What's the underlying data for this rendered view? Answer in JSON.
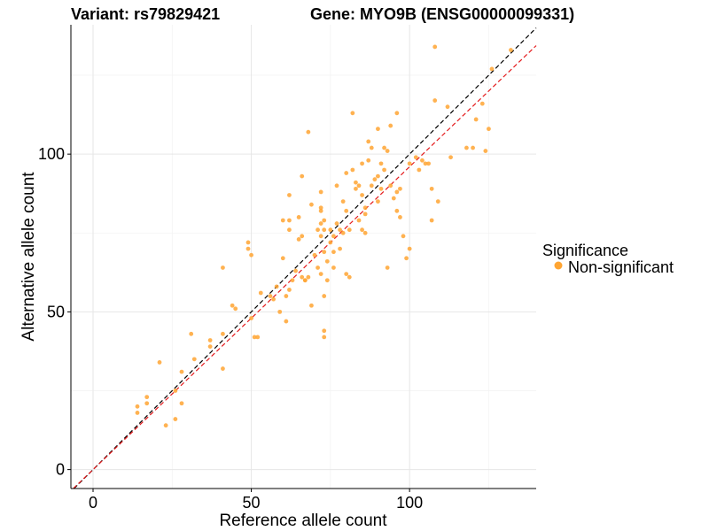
{
  "chart_data": {
    "type": "scatter",
    "title_left": "Variant: rs79829421",
    "title_right": "Gene: MYO9B (ENSG00000099331)",
    "xlabel": "Reference allele count",
    "ylabel": "Alternative allele count",
    "xlim": [
      -7,
      140
    ],
    "ylim": [
      -6,
      141
    ],
    "xticks": [
      0,
      50,
      100
    ],
    "yticks": [
      0,
      50,
      100
    ],
    "grid": true,
    "legend": {
      "title": "Significance",
      "placement": "right",
      "entries": [
        {
          "label": "Non-significant",
          "color": "#FFA533"
        }
      ]
    },
    "colors": {
      "points": "#FFA533",
      "identity_line": "#000000",
      "fit_line": "#E41A1C"
    },
    "reference_lines": [
      {
        "name": "identity",
        "slope": 1.0,
        "intercept": 0,
        "style": "dashed",
        "color": "#000000"
      },
      {
        "name": "fit",
        "slope": 0.96,
        "intercept": 0,
        "style": "dashed",
        "color": "#E41A1C"
      }
    ],
    "series": [
      {
        "points": [
          [
            14,
            20
          ],
          [
            14,
            18
          ],
          [
            17,
            23
          ],
          [
            17,
            21
          ],
          [
            21,
            34
          ],
          [
            23,
            14
          ],
          [
            26,
            16
          ],
          [
            26,
            25
          ],
          [
            28,
            31
          ],
          [
            28,
            21
          ],
          [
            31,
            43
          ],
          [
            32,
            35
          ],
          [
            37,
            41
          ],
          [
            37,
            39
          ],
          [
            41,
            32
          ],
          [
            41,
            43
          ],
          [
            41,
            64
          ],
          [
            44,
            52
          ],
          [
            45,
            51
          ],
          [
            49,
            72
          ],
          [
            49,
            70
          ],
          [
            50,
            68
          ],
          [
            50,
            48
          ],
          [
            51,
            42
          ],
          [
            52,
            42
          ],
          [
            53,
            56
          ],
          [
            56,
            55
          ],
          [
            57,
            54
          ],
          [
            58,
            58
          ],
          [
            59,
            50
          ],
          [
            60,
            79
          ],
          [
            60,
            67
          ],
          [
            61,
            47
          ],
          [
            61,
            55
          ],
          [
            62,
            57
          ],
          [
            62,
            87
          ],
          [
            62,
            76
          ],
          [
            62,
            79
          ],
          [
            63,
            60
          ],
          [
            64,
            63
          ],
          [
            65,
            73
          ],
          [
            65,
            80
          ],
          [
            66,
            93
          ],
          [
            66,
            74
          ],
          [
            66,
            61
          ],
          [
            67,
            60
          ],
          [
            67,
            60
          ],
          [
            68,
            107
          ],
          [
            68,
            61
          ],
          [
            69,
            52
          ],
          [
            69,
            84
          ],
          [
            70,
            68
          ],
          [
            71,
            64
          ],
          [
            71,
            76
          ],
          [
            72,
            83
          ],
          [
            72,
            78
          ],
          [
            72,
            74
          ],
          [
            72,
            62
          ],
          [
            72,
            88
          ],
          [
            72,
            82
          ],
          [
            73,
            79
          ],
          [
            73,
            69
          ],
          [
            73,
            76
          ],
          [
            73,
            55
          ],
          [
            73,
            44
          ],
          [
            73,
            42
          ],
          [
            74,
            66
          ],
          [
            74,
            60
          ],
          [
            75,
            76
          ],
          [
            75,
            72
          ],
          [
            76,
            69
          ],
          [
            76,
            64
          ],
          [
            76,
            74
          ],
          [
            77,
            90
          ],
          [
            77,
            78
          ],
          [
            78,
            76
          ],
          [
            78,
            70
          ],
          [
            79,
            85
          ],
          [
            79,
            75
          ],
          [
            80,
            82
          ],
          [
            80,
            62
          ],
          [
            80,
            94
          ],
          [
            81,
            61
          ],
          [
            81,
            76
          ],
          [
            82,
            113
          ],
          [
            82,
            95
          ],
          [
            83,
            91
          ],
          [
            83,
            89
          ],
          [
            84,
            90
          ],
          [
            84,
            79
          ],
          [
            85,
            97
          ],
          [
            85,
            87
          ],
          [
            85,
            76
          ],
          [
            86,
            75
          ],
          [
            86,
            81
          ],
          [
            86,
            83
          ],
          [
            87,
            104
          ],
          [
            87,
            98
          ],
          [
            88,
            102
          ],
          [
            88,
            90
          ],
          [
            89,
            92
          ],
          [
            90,
            108
          ],
          [
            90,
            93
          ],
          [
            90,
            85
          ],
          [
            91,
            97
          ],
          [
            91,
            89
          ],
          [
            92,
            102
          ],
          [
            92,
            95
          ],
          [
            93,
            101
          ],
          [
            93,
            64
          ],
          [
            94,
            109
          ],
          [
            94,
            90
          ],
          [
            95,
            86
          ],
          [
            96,
            113
          ],
          [
            96,
            88
          ],
          [
            96,
            82
          ],
          [
            97,
            89
          ],
          [
            97,
            80
          ],
          [
            98,
            74
          ],
          [
            99,
            67
          ],
          [
            100,
            97
          ],
          [
            100,
            70
          ],
          [
            102,
            99
          ],
          [
            103,
            95
          ],
          [
            104,
            98
          ],
          [
            105,
            97
          ],
          [
            106,
            97
          ],
          [
            107,
            89
          ],
          [
            107,
            79
          ],
          [
            108,
            117
          ],
          [
            108,
            134
          ],
          [
            109,
            85
          ],
          [
            112,
            115
          ],
          [
            113,
            99
          ],
          [
            118,
            102
          ],
          [
            120,
            102
          ],
          [
            121,
            111
          ],
          [
            123,
            116
          ],
          [
            124,
            101
          ],
          [
            125,
            108
          ],
          [
            126,
            127
          ],
          [
            132,
            133
          ]
        ]
      }
    ]
  }
}
